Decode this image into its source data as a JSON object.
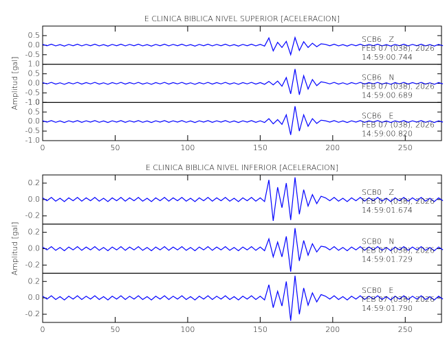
{
  "chart_data": [
    {
      "type": "line",
      "title": "E CLINICA BIBLICA NIVEL SUPERIOR [ACELERACION]",
      "ylabel": "Amplitud [gal]",
      "color": "#0000ff",
      "xlim": [
        0,
        275
      ],
      "xticks": [
        0,
        50,
        100,
        150,
        200,
        250
      ],
      "x": [
        0,
        3,
        6,
        9,
        12,
        15,
        18,
        21,
        24,
        27,
        30,
        33,
        36,
        39,
        42,
        45,
        48,
        51,
        54,
        57,
        60,
        63,
        66,
        69,
        72,
        75,
        78,
        81,
        84,
        87,
        90,
        93,
        96,
        99,
        102,
        105,
        108,
        111,
        114,
        117,
        120,
        123,
        126,
        129,
        132,
        135,
        138,
        141,
        144,
        147,
        150,
        153,
        156,
        159,
        162,
        165,
        168,
        171,
        174,
        177,
        180,
        183,
        186,
        189,
        192,
        195,
        198,
        201,
        204,
        207,
        210,
        213,
        216,
        219,
        222,
        225,
        228,
        231,
        234,
        237,
        240,
        243,
        246,
        249,
        252,
        255,
        258,
        261,
        264,
        267,
        270,
        273,
        276
      ],
      "series": [
        {
          "name": "SCB6   Z",
          "date": "FEB 07 (038), 2026",
          "time": "14:59:00.744",
          "ylim": [
            -1,
            1
          ],
          "yticks": [
            -0.5,
            {
              "value": 0,
              "label": "0.0"
            },
            0.5
          ],
          "values": [
            0.04,
            -0.03,
            0.05,
            -0.04,
            0.03,
            -0.05,
            0.04,
            -0.03,
            0.05,
            -0.04,
            0.04,
            -0.03,
            0.05,
            -0.04,
            0.03,
            -0.05,
            0.04,
            -0.03,
            0.05,
            -0.04,
            0.04,
            -0.03,
            0.05,
            -0.04,
            0.03,
            -0.05,
            0.04,
            -0.03,
            0.05,
            -0.04,
            0.04,
            -0.03,
            0.05,
            -0.04,
            0.03,
            -0.05,
            0.04,
            -0.03,
            0.05,
            -0.04,
            0.04,
            -0.03,
            0.05,
            -0.04,
            0.03,
            -0.05,
            0.04,
            -0.03,
            0.05,
            -0.04,
            0.04,
            -0.05,
            0.38,
            -0.3,
            0.15,
            -0.12,
            0.2,
            -0.5,
            0.4,
            -0.28,
            0.18,
            -0.12,
            0.1,
            -0.08,
            0.07,
            0.04,
            -0.03,
            0.05,
            -0.04,
            0.03,
            -0.05,
            0.04,
            -0.03,
            0.05,
            -0.04,
            0.04,
            -0.03,
            0.05,
            -0.04,
            0.03,
            -0.05,
            0.04,
            -0.03,
            0.05,
            -0.04,
            0.04,
            -0.03,
            0.05,
            -0.04,
            0.03,
            -0.05,
            0.04,
            -0.03
          ]
        },
        {
          "name": "SCB6   N",
          "date": "FEB 07 (038), 2026",
          "time": "14:59:00.689",
          "ylim": [
            -1,
            1
          ],
          "yticks": [
            {
              "value": -1,
              "label": "-1.0"
            },
            -0.5,
            {
              "value": 0,
              "label": "0.0"
            },
            0.5,
            {
              "value": 1,
              "label": "1.0"
            }
          ],
          "values": [
            0.04,
            -0.03,
            0.05,
            -0.04,
            0.03,
            -0.05,
            0.04,
            -0.03,
            0.05,
            -0.04,
            0.04,
            -0.03,
            0.05,
            -0.04,
            0.03,
            -0.05,
            0.04,
            -0.03,
            0.05,
            -0.04,
            0.04,
            -0.03,
            0.05,
            -0.04,
            0.03,
            -0.05,
            0.04,
            -0.03,
            0.05,
            -0.04,
            0.04,
            -0.03,
            0.05,
            -0.04,
            0.03,
            -0.05,
            0.04,
            -0.03,
            0.05,
            -0.04,
            0.04,
            -0.03,
            0.05,
            -0.04,
            0.03,
            -0.05,
            0.04,
            -0.03,
            0.05,
            -0.04,
            0.04,
            -0.05,
            0.1,
            -0.08,
            0.12,
            -0.15,
            0.3,
            -0.55,
            0.75,
            -0.6,
            0.4,
            -0.3,
            0.2,
            -0.12,
            0.08,
            0.04,
            -0.03,
            0.05,
            -0.04,
            0.03,
            -0.05,
            0.04,
            -0.03,
            0.05,
            -0.04,
            0.04,
            -0.03,
            0.05,
            -0.04,
            0.03,
            -0.05,
            0.04,
            -0.03,
            0.05,
            -0.04,
            0.04,
            -0.03,
            0.05,
            -0.04,
            0.03,
            -0.05,
            0.04,
            -0.03
          ]
        },
        {
          "name": "SCB6   E",
          "date": "FEB 07 (038), 2026",
          "time": "14:59:00.820",
          "ylim": [
            -1,
            1
          ],
          "yticks": [
            {
              "value": -1,
              "label": "-1.0"
            },
            -0.5,
            {
              "value": 0,
              "label": "0.0"
            },
            0.5,
            {
              "value": 1,
              "label": "1.0"
            }
          ],
          "values": [
            0.04,
            -0.03,
            0.05,
            -0.04,
            0.03,
            -0.05,
            0.04,
            -0.03,
            0.05,
            -0.04,
            0.04,
            -0.03,
            0.05,
            -0.04,
            0.03,
            -0.05,
            0.04,
            -0.03,
            0.05,
            -0.04,
            0.04,
            -0.03,
            0.05,
            -0.04,
            0.03,
            -0.05,
            0.04,
            -0.03,
            0.05,
            -0.04,
            0.04,
            -0.03,
            0.05,
            -0.04,
            0.03,
            -0.05,
            0.04,
            -0.03,
            0.05,
            -0.04,
            0.04,
            -0.03,
            0.05,
            -0.04,
            0.03,
            -0.05,
            0.04,
            -0.03,
            0.05,
            -0.04,
            0.04,
            -0.05,
            0.15,
            -0.12,
            0.1,
            -0.15,
            0.35,
            -0.7,
            0.8,
            -0.5,
            0.35,
            -0.25,
            0.15,
            -0.1,
            0.07,
            0.04,
            -0.03,
            0.05,
            -0.04,
            0.03,
            -0.05,
            0.04,
            -0.03,
            0.05,
            -0.04,
            0.04,
            -0.03,
            0.05,
            -0.04,
            0.03,
            -0.05,
            0.04,
            -0.03,
            0.05,
            -0.04,
            0.04,
            -0.03,
            0.05,
            -0.04,
            0.03,
            -0.05,
            0.04,
            -0.03
          ]
        }
      ]
    },
    {
      "type": "line",
      "title": "E CLINICA BIBLICA NIVEL INFERIOR [ACELERACION]",
      "ylabel": "Amplitud [gal]",
      "color": "#0000ff",
      "xlim": [
        0,
        275
      ],
      "xticks": [
        0,
        50,
        100,
        150,
        200,
        250
      ],
      "x": [
        0,
        3,
        6,
        9,
        12,
        15,
        18,
        21,
        24,
        27,
        30,
        33,
        36,
        39,
        42,
        45,
        48,
        51,
        54,
        57,
        60,
        63,
        66,
        69,
        72,
        75,
        78,
        81,
        84,
        87,
        90,
        93,
        96,
        99,
        102,
        105,
        108,
        111,
        114,
        117,
        120,
        123,
        126,
        129,
        132,
        135,
        138,
        141,
        144,
        147,
        150,
        153,
        156,
        159,
        162,
        165,
        168,
        171,
        174,
        177,
        180,
        183,
        186,
        189,
        192,
        195,
        198,
        201,
        204,
        207,
        210,
        213,
        216,
        219,
        222,
        225,
        228,
        231,
        234,
        237,
        240,
        243,
        246,
        249,
        252,
        255,
        258,
        261,
        264,
        267,
        270,
        273,
        276
      ],
      "series": [
        {
          "name": "SCB0   Z",
          "date": "FEB 07 (038), 2026",
          "time": "14:59:01.674",
          "ylim": [
            -0.3,
            0.3
          ],
          "yticks": [
            -0.2,
            {
              "value": 0,
              "label": "0.0"
            },
            0.2
          ],
          "values": [
            0.02,
            -0.015,
            0.025,
            -0.02,
            0.015,
            -0.025,
            0.02,
            -0.015,
            0.025,
            -0.02,
            0.02,
            -0.015,
            0.025,
            -0.02,
            0.015,
            -0.025,
            0.02,
            -0.015,
            0.025,
            -0.02,
            0.02,
            -0.015,
            0.025,
            -0.02,
            0.015,
            -0.025,
            0.02,
            -0.015,
            0.025,
            -0.02,
            0.02,
            -0.015,
            0.025,
            -0.02,
            0.015,
            -0.025,
            0.02,
            -0.015,
            0.025,
            -0.02,
            0.02,
            -0.015,
            0.025,
            -0.02,
            0.015,
            -0.025,
            0.02,
            -0.015,
            0.025,
            -0.02,
            0.02,
            -0.025,
            0.24,
            -0.26,
            0.15,
            -0.1,
            0.2,
            -0.25,
            0.27,
            -0.18,
            0.12,
            -0.08,
            0.06,
            -0.05,
            0.04,
            0.02,
            -0.015,
            0.025,
            -0.02,
            0.015,
            -0.025,
            0.02,
            -0.015,
            0.025,
            -0.02,
            0.02,
            -0.015,
            0.025,
            -0.02,
            0.015,
            -0.025,
            0.02,
            -0.015,
            0.025,
            -0.02,
            0.02,
            -0.015,
            0.025,
            -0.02,
            0.015,
            -0.025,
            0.02,
            -0.015
          ]
        },
        {
          "name": "SCB0   N",
          "date": "FEB 07 (038), 2026",
          "time": "14:59:01.729",
          "ylim": [
            -0.3,
            0.3
          ],
          "yticks": [
            -0.2,
            {
              "value": 0,
              "label": "0.0"
            },
            0.2
          ],
          "values": [
            0.02,
            -0.015,
            0.025,
            -0.02,
            0.015,
            -0.025,
            0.02,
            -0.015,
            0.025,
            -0.02,
            0.02,
            -0.015,
            0.025,
            -0.02,
            0.015,
            -0.025,
            0.02,
            -0.015,
            0.025,
            -0.02,
            0.02,
            -0.015,
            0.025,
            -0.02,
            0.015,
            -0.025,
            0.02,
            -0.015,
            0.025,
            -0.02,
            0.02,
            -0.015,
            0.025,
            -0.02,
            0.015,
            -0.025,
            0.02,
            -0.015,
            0.025,
            -0.02,
            0.02,
            -0.015,
            0.025,
            -0.02,
            0.015,
            -0.025,
            0.02,
            -0.015,
            0.025,
            -0.02,
            0.02,
            -0.025,
            0.12,
            -0.1,
            0.08,
            -0.1,
            0.15,
            -0.28,
            0.25,
            -0.15,
            0.1,
            -0.08,
            0.06,
            -0.04,
            0.03,
            0.02,
            -0.015,
            0.025,
            -0.02,
            0.015,
            -0.025,
            0.02,
            -0.015,
            0.025,
            -0.02,
            0.02,
            -0.015,
            0.025,
            -0.02,
            0.015,
            -0.025,
            0.02,
            -0.015,
            0.025,
            -0.02,
            0.02,
            -0.015,
            0.025,
            -0.02,
            0.015,
            -0.025,
            0.02,
            -0.015
          ]
        },
        {
          "name": "SCB0   E",
          "date": "FEB 07 (038), 2026",
          "time": "14:59:01.790",
          "ylim": [
            -0.3,
            0.3
          ],
          "yticks": [
            -0.2,
            {
              "value": 0,
              "label": "0.0"
            },
            0.2
          ],
          "values": [
            0.02,
            -0.015,
            0.025,
            -0.02,
            0.015,
            -0.025,
            0.02,
            -0.015,
            0.025,
            -0.02,
            0.02,
            -0.015,
            0.025,
            -0.02,
            0.015,
            -0.025,
            0.02,
            -0.015,
            0.025,
            -0.02,
            0.02,
            -0.015,
            0.025,
            -0.02,
            0.015,
            -0.025,
            0.02,
            -0.015,
            0.025,
            -0.02,
            0.02,
            -0.015,
            0.025,
            -0.02,
            0.015,
            -0.025,
            0.02,
            -0.015,
            0.025,
            -0.02,
            0.02,
            -0.015,
            0.025,
            -0.02,
            0.015,
            -0.025,
            0.02,
            -0.015,
            0.025,
            -0.02,
            0.02,
            -0.025,
            0.16,
            -0.12,
            0.08,
            -0.1,
            0.2,
            -0.28,
            0.27,
            -0.2,
            0.12,
            -0.09,
            0.06,
            -0.05,
            0.04,
            0.02,
            -0.015,
            0.025,
            -0.02,
            0.015,
            -0.025,
            0.02,
            -0.015,
            0.025,
            -0.02,
            0.02,
            -0.015,
            0.025,
            -0.02,
            0.015,
            -0.025,
            0.02,
            -0.015,
            0.025,
            -0.02,
            0.02,
            -0.015,
            0.025,
            -0.02,
            0.015,
            -0.025,
            0.02,
            -0.015
          ]
        }
      ]
    }
  ]
}
